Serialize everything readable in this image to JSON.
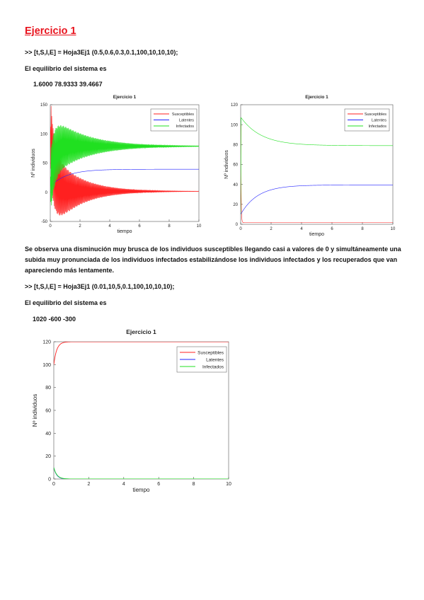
{
  "doc": {
    "title": "Ejercicio 1",
    "cmd1": ">> [t,S,I,E] = Hoja3Ej1 (0.5,0.6,0.3,0.1,100,10,10,10);",
    "eq1_label": "El equilibrio del sistema es",
    "eq1_values": "1.6000   78.9333   39.4667",
    "paragraph": "Se observa una disminución muy brusca de los individuos susceptibles llegando casi a valores de 0 y simultáneamente una subida muy pronunciada de los individuos infectados estabilizándose los individuos infectados y los recuperados que van apareciendo más lentamente.",
    "cmd2": ">> [t,S,I,E] = Hoja3Ej1 (0.01,10,5,0.1,100,10,10,10);",
    "eq2_label": "El equilibrio del sistema es",
    "eq2_values": "1020   -600   -300"
  },
  "chart_data": [
    {
      "type": "line",
      "title": "Ejercicio 1",
      "xlabel": "tiempo",
      "ylabel": "Nº individuos",
      "xlim": [
        0,
        10
      ],
      "ylim": [
        -50,
        150
      ],
      "xticks": [
        0,
        2,
        4,
        6,
        8,
        10
      ],
      "yticks": [
        -50,
        0,
        50,
        100,
        150
      ],
      "legend_position": "top-right",
      "series": [
        {
          "name": "Susceptibles",
          "color": "#ff2020",
          "model": "oscillating",
          "start": 100,
          "eq": 1.6,
          "amp0": 70,
          "decay": 0.55,
          "freq": 22
        },
        {
          "name": "Latentes",
          "color": "#2020ff",
          "model": "rise",
          "start": 10,
          "eq": 39.4667,
          "rate": 0.9
        },
        {
          "name": "Infectados",
          "color": "#20e020",
          "model": "oscillating",
          "start": 10,
          "eq": 78.9333,
          "amp0": 55,
          "decay": 0.45,
          "freq": 22
        }
      ]
    },
    {
      "type": "line",
      "title": "Ejercicio 1",
      "xlabel": "tiempo",
      "ylabel": "Nº individuos",
      "xlim": [
        0,
        10
      ],
      "ylim": [
        0,
        120
      ],
      "xticks": [
        0,
        2,
        4,
        6,
        8,
        10
      ],
      "yticks": [
        0,
        20,
        40,
        60,
        80,
        100,
        120
      ],
      "legend_position": "top-right",
      "series": [
        {
          "name": "Susceptibles",
          "color": "#ff2020",
          "model": "spike_down",
          "start": 100,
          "eq": 1.6,
          "rate": 40
        },
        {
          "name": "Latentes",
          "color": "#2020ff",
          "model": "rise",
          "start": 10,
          "eq": 39.4667,
          "rate": 0.9
        },
        {
          "name": "Infectados",
          "color": "#20e020",
          "model": "spike_decay",
          "start": 10,
          "peak": 107,
          "eq": 78.9333,
          "rate": 0.75
        }
      ]
    },
    {
      "type": "line",
      "title": "Ejercicio 1",
      "xlabel": "tiempo",
      "ylabel": "Nº individuos",
      "xlim": [
        0,
        10
      ],
      "ylim": [
        0,
        120
      ],
      "xticks": [
        0,
        2,
        4,
        6,
        8,
        10
      ],
      "yticks": [
        0,
        20,
        40,
        60,
        80,
        100,
        120
      ],
      "legend_position": "top-right",
      "series": [
        {
          "name": "Susceptibles",
          "color": "#ff2020",
          "model": "rise",
          "start": 100,
          "eq": 120,
          "rate": 6
        },
        {
          "name": "Latentes",
          "color": "#2020ff",
          "model": "decay",
          "start": 10,
          "eq": 0,
          "rate": 6
        },
        {
          "name": "Infectados",
          "color": "#20e020",
          "model": "decay",
          "start": 10,
          "eq": 0,
          "rate": 5.5
        }
      ]
    }
  ]
}
